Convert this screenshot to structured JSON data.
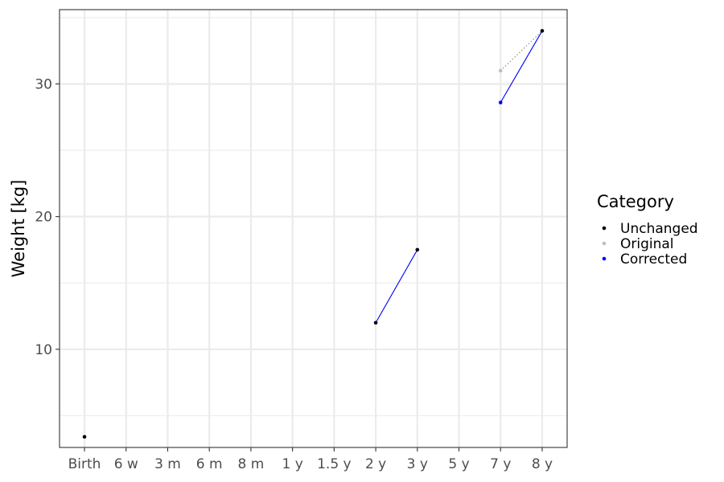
{
  "chart_data": {
    "type": "line",
    "title": "",
    "xlabel": "",
    "ylabel": "Weight [kg]",
    "categories": [
      "Birth",
      "6 w",
      "3 m",
      "6 m",
      "8 m",
      "1 y",
      "1.5 y",
      "2 y",
      "3 y",
      "5 y",
      "7 y",
      "8 y"
    ],
    "y_ticks": [
      10,
      20,
      30
    ],
    "ylim": [
      2.6,
      35.6
    ],
    "grid": true,
    "legend": {
      "title": "Category",
      "position": "right",
      "entries": [
        {
          "label": "Unchanged",
          "color": "#000000"
        },
        {
          "label": "Original",
          "color": "#bebebe"
        },
        {
          "label": "Corrected",
          "color": "#0000ff"
        }
      ]
    },
    "series": [
      {
        "name": "Unchanged",
        "color": "#000000",
        "marker": "point",
        "points": [
          {
            "x": "Birth",
            "y": 3.4
          },
          {
            "x": "2 y",
            "y": 12.0
          },
          {
            "x": "3 y",
            "y": 17.5
          },
          {
            "x": "8 y",
            "y": 34.0
          }
        ]
      },
      {
        "name": "Original",
        "color": "#bebebe",
        "marker": "point",
        "points": [
          {
            "x": "7 y",
            "y": 31.0
          }
        ]
      },
      {
        "name": "Corrected",
        "color": "#0000ff",
        "marker": "point",
        "points": [
          {
            "x": "7 y",
            "y": 28.6
          }
        ]
      }
    ],
    "segments": [
      {
        "color": "#0000ff",
        "style": "solid",
        "from": {
          "x": "2 y",
          "y": 12.0
        },
        "to": {
          "x": "3 y",
          "y": 17.5
        }
      },
      {
        "color": "#0000ff",
        "style": "solid",
        "from": {
          "x": "7 y",
          "y": 28.6
        },
        "to": {
          "x": "8 y",
          "y": 34.0
        }
      },
      {
        "color": "#888888",
        "style": "dotted",
        "from": {
          "x": "7 y",
          "y": 31.0
        },
        "to": {
          "x": "8 y",
          "y": 34.0
        }
      }
    ]
  }
}
